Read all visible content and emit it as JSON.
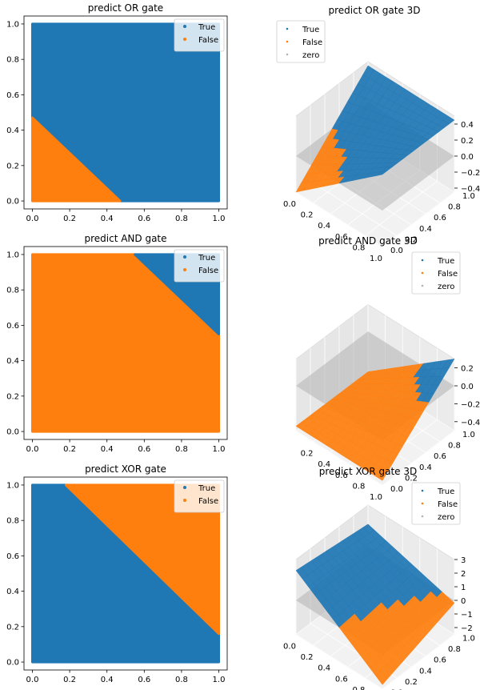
{
  "colors": {
    "true": "#1f77b4",
    "false": "#ff7f0e",
    "zero": "#b3b3b3"
  },
  "chart_data": [
    {
      "type": "scatter",
      "title": "predict OR gate",
      "xlim": [
        0,
        1
      ],
      "ylim": [
        0,
        1
      ],
      "xticks": [
        "0.0",
        "0.2",
        "0.4",
        "0.6",
        "0.8",
        "1.0"
      ],
      "yticks": [
        "0.0",
        "0.2",
        "0.4",
        "0.6",
        "0.8",
        "1.0"
      ],
      "legend": [
        "True",
        "False"
      ],
      "legend_position": "top-right",
      "regions": [
        {
          "name": "True",
          "polygon": [
            [
              0,
              0.47
            ],
            [
              0.47,
              0
            ],
            [
              1,
              0
            ],
            [
              1,
              1
            ],
            [
              0,
              1
            ]
          ]
        },
        {
          "name": "False",
          "polygon": [
            [
              0,
              0
            ],
            [
              0.47,
              0
            ],
            [
              0,
              0.47
            ]
          ]
        }
      ]
    },
    {
      "type": "surface3d",
      "title": "predict OR gate 3D",
      "xticks": [
        "0.0",
        "0.2",
        "0.4",
        "0.6",
        "0.8",
        "1.0"
      ],
      "yticks": [
        "0.0",
        "0.2",
        "0.4",
        "0.6",
        "0.8",
        "1.0"
      ],
      "zticks": [
        "0.4",
        "0.2",
        "0.0",
        "−0.2",
        "−0.4"
      ],
      "legend": [
        "True",
        "False",
        "zero"
      ],
      "legend_position": "top-left",
      "zlim": [
        -0.5,
        0.5
      ]
    },
    {
      "type": "scatter",
      "title": "predict AND gate",
      "xlim": [
        0,
        1
      ],
      "ylim": [
        0,
        1
      ],
      "xticks": [
        "0.0",
        "0.2",
        "0.4",
        "0.6",
        "0.8",
        "1.0"
      ],
      "yticks": [
        "0.0",
        "0.2",
        "0.4",
        "0.6",
        "0.8",
        "1.0"
      ],
      "legend": [
        "True",
        "False"
      ],
      "legend_position": "top-right",
      "regions": [
        {
          "name": "False",
          "polygon": [
            [
              0,
              0
            ],
            [
              1,
              0
            ],
            [
              1,
              0.55
            ],
            [
              0.55,
              1
            ],
            [
              0,
              1
            ]
          ]
        },
        {
          "name": "True",
          "polygon": [
            [
              1,
              0.55
            ],
            [
              1,
              1
            ],
            [
              0.55,
              1
            ]
          ]
        }
      ]
    },
    {
      "type": "surface3d",
      "title": "predict AND gate 3D",
      "xticks": [
        "0.2",
        "0.4",
        "0.6",
        "0.8",
        "1.0"
      ],
      "yticks": [
        "0.0",
        "0.2",
        "0.4",
        "0.6",
        "0.8",
        "1.0"
      ],
      "zticks": [
        "0.2",
        "0.0",
        "−0.2",
        "−0.4"
      ],
      "legend": [
        "True",
        "False",
        "zero"
      ],
      "legend_position": "top-right",
      "zlim": [
        -0.5,
        0.3
      ]
    },
    {
      "type": "scatter",
      "title": "predict XOR gate",
      "xlim": [
        0,
        1
      ],
      "ylim": [
        0,
        1
      ],
      "xticks": [
        "0.0",
        "0.2",
        "0.4",
        "0.6",
        "0.8",
        "1.0"
      ],
      "yticks": [
        "0.0",
        "0.2",
        "0.4",
        "0.6",
        "0.8",
        "1.0"
      ],
      "legend": [
        "True",
        "False"
      ],
      "legend_position": "top-right",
      "regions": [
        {
          "name": "True",
          "polygon": [
            [
              0,
              0
            ],
            [
              1,
              0
            ],
            [
              1,
              0.16
            ],
            [
              0.18,
              1
            ],
            [
              0,
              1
            ]
          ]
        },
        {
          "name": "False",
          "polygon": [
            [
              0.18,
              1
            ],
            [
              1,
              1
            ],
            [
              1,
              0.16
            ]
          ]
        }
      ]
    },
    {
      "type": "surface3d",
      "title": "predict XOR gate 3D",
      "xticks": [
        "0.0",
        "0.2",
        "0.4",
        "0.6",
        "0.8",
        "1.0"
      ],
      "yticks": [
        "0.0",
        "0.2",
        "0.4",
        "0.6",
        "0.8",
        "1.0"
      ],
      "zticks": [
        "3",
        "2",
        "1",
        "0",
        "−1",
        "−2"
      ],
      "legend": [
        "True",
        "False",
        "zero"
      ],
      "legend_position": "top-right",
      "zlim": [
        -2.5,
        3
      ]
    }
  ]
}
